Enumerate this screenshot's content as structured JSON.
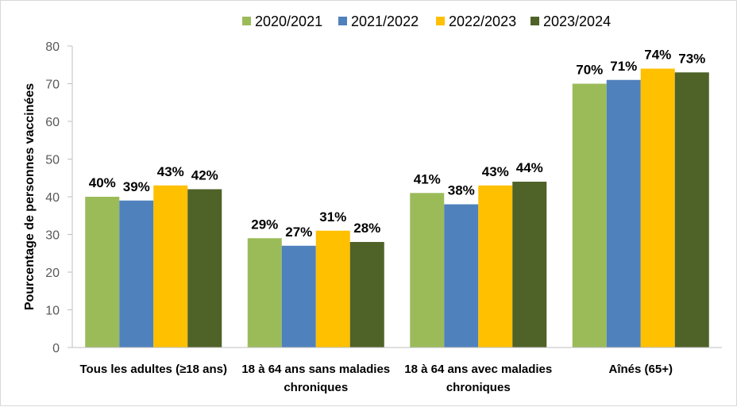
{
  "chart_data": {
    "type": "bar",
    "ylabel": "Pourcentage de personnes vaccinées",
    "ylim": [
      0,
      80
    ],
    "yticks": [
      "0",
      "10",
      "20",
      "30",
      "40",
      "50",
      "60",
      "70",
      "80"
    ],
    "grid": false,
    "legend_position": "top",
    "categories": [
      [
        "Tous les adultes (≥18 ans)"
      ],
      [
        "18 à 64 ans sans maladies",
        "chroniques"
      ],
      [
        "18 à 64 ans avec maladies",
        "chroniques"
      ],
      [
        "Aînés (65+)"
      ]
    ],
    "series": [
      {
        "name": "2020/2021",
        "color": "#9bbb59",
        "values": [
          40,
          29,
          41,
          70
        ],
        "labels": [
          "40%",
          "29%",
          "41%",
          "70%"
        ]
      },
      {
        "name": "2021/2022",
        "color": "#4f81bd",
        "values": [
          39,
          27,
          38,
          71
        ],
        "labels": [
          "39%",
          "27%",
          "38%",
          "71%"
        ]
      },
      {
        "name": "2022/2023",
        "color": "#ffc000",
        "values": [
          43,
          31,
          43,
          74
        ],
        "labels": [
          "43%",
          "31%",
          "43%",
          "74%"
        ]
      },
      {
        "name": "2023/2024",
        "color": "#4f6228",
        "values": [
          42,
          28,
          44,
          73
        ],
        "labels": [
          "42%",
          "28%",
          "44%",
          "73%"
        ]
      }
    ]
  }
}
